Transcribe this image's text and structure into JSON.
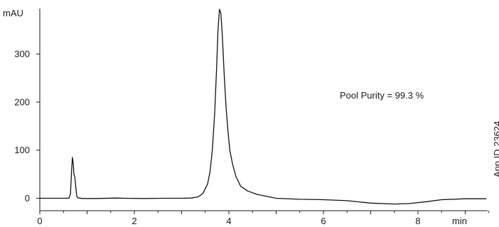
{
  "chart_data": {
    "type": "line",
    "title": "",
    "ylabel": "mAU",
    "xlabel": "min",
    "xlim": [
      0,
      9.5
    ],
    "ylim": [
      -20,
      400
    ],
    "x_ticks": [
      0,
      2,
      4,
      6,
      8
    ],
    "y_ticks": [
      0,
      100,
      200,
      300
    ],
    "annotation": "Pool Purity = 99.3 %",
    "side_label": "App ID 23624",
    "grid": false,
    "legend": "none",
    "series": [
      {
        "values": [
          [
            0.0,
            0
          ],
          [
            0.5,
            0
          ],
          [
            0.62,
            0.5
          ],
          [
            0.65,
            10
          ],
          [
            0.67,
            55
          ],
          [
            0.69,
            85
          ],
          [
            0.71,
            70
          ],
          [
            0.72,
            50
          ],
          [
            0.74,
            45
          ],
          [
            0.76,
            25
          ],
          [
            0.78,
            5
          ],
          [
            0.8,
            1
          ],
          [
            0.9,
            -0.5
          ],
          [
            1.2,
            -0.5
          ],
          [
            1.6,
            0.5
          ],
          [
            1.8,
            0
          ],
          [
            2.2,
            -0.5
          ],
          [
            2.6,
            0
          ],
          [
            3.0,
            0
          ],
          [
            3.2,
            0.5
          ],
          [
            3.35,
            3
          ],
          [
            3.45,
            10
          ],
          [
            3.55,
            30
          ],
          [
            3.6,
            55
          ],
          [
            3.65,
            100
          ],
          [
            3.7,
            180
          ],
          [
            3.74,
            270
          ],
          [
            3.77,
            350
          ],
          [
            3.8,
            393
          ],
          [
            3.83,
            385
          ],
          [
            3.86,
            340
          ],
          [
            3.9,
            260
          ],
          [
            3.94,
            190
          ],
          [
            3.98,
            140
          ],
          [
            4.02,
            100
          ],
          [
            4.08,
            70
          ],
          [
            4.15,
            45
          ],
          [
            4.25,
            25
          ],
          [
            4.4,
            15
          ],
          [
            4.6,
            8
          ],
          [
            4.8,
            4
          ],
          [
            5.0,
            0
          ],
          [
            5.5,
            -2
          ],
          [
            6.0,
            -3
          ],
          [
            6.5,
            -5
          ],
          [
            7.0,
            -10
          ],
          [
            7.5,
            -12
          ],
          [
            7.8,
            -11
          ],
          [
            8.2,
            -7
          ],
          [
            8.5,
            -3
          ],
          [
            9.0,
            -1
          ],
          [
            9.45,
            -1
          ]
        ]
      }
    ]
  }
}
